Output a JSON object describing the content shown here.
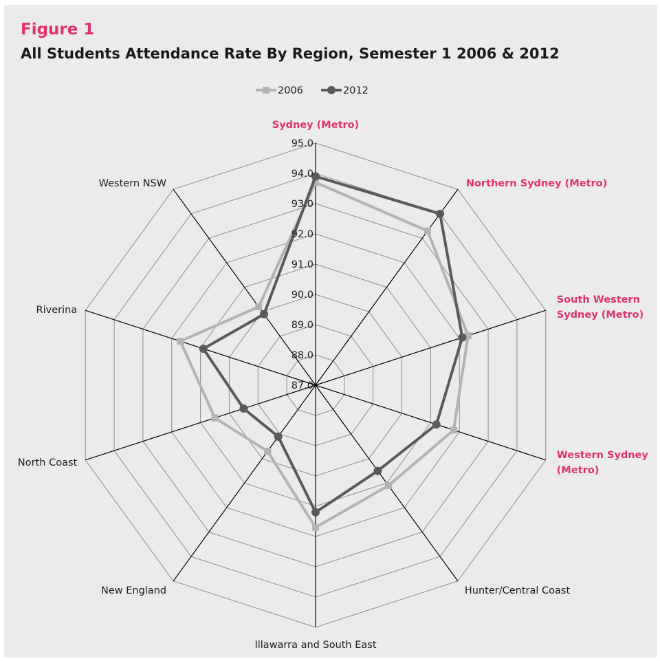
{
  "figure": {
    "label": "Figure 1",
    "title": "All Students Attendance Rate By Region, Semester 1 2006 & 2012"
  },
  "colors": {
    "background_panel": "#ebebeb",
    "highlight": "#e0336b",
    "series_2006": "#b3b3b3",
    "series_2012": "#5a5a5a",
    "grid": "#8c8c8c",
    "spoke": "#000000"
  },
  "chart_data": {
    "type": "radar",
    "title": "All Students Attendance Rate By Region, Semester 1 2006 & 2012",
    "categories": [
      "Sydney (Metro)",
      "Northern Sydney (Metro)",
      "South Western Sydney (Metro)",
      "Western Sydney (Metro)",
      "Hunter/Central Coast",
      "Illawarra and South East",
      "New England",
      "North Coast",
      "Riverina",
      "Western NSW"
    ],
    "category_lines": [
      [
        "Sydney (Metro)"
      ],
      [
        "Northern Sydney (Metro)"
      ],
      [
        "South Western",
        "Sydney (Metro)"
      ],
      [
        "Western Sydney",
        "(Metro)"
      ],
      [
        "Hunter/Central Coast"
      ],
      [
        "Illawarra and South East"
      ],
      [
        "New England"
      ],
      [
        "North Coast"
      ],
      [
        "Riverina"
      ],
      [
        "Western NSW"
      ]
    ],
    "highlighted_categories": [
      "Sydney (Metro)",
      "Northern Sydney (Metro)",
      "South Western Sydney (Metro)",
      "Western Sydney (Metro)"
    ],
    "series": [
      {
        "name": "2006",
        "values": [
          93.7,
          93.3,
          92.3,
          91.8,
          91.1,
          91.7,
          89.7,
          90.5,
          91.7,
          90.2
        ]
      },
      {
        "name": "2012",
        "values": [
          93.9,
          94.0,
          92.1,
          91.2,
          90.5,
          91.2,
          89.1,
          89.5,
          90.9,
          89.9
        ]
      }
    ],
    "r_range": [
      87.0,
      95.0
    ],
    "ticks": [
      "87.0",
      "88.0",
      "89.0",
      "90.0",
      "91.0",
      "92.0",
      "93.0",
      "94.0",
      "95.0"
    ],
    "legend": [
      "2006",
      "2012"
    ],
    "legend_position": "top",
    "grid": true
  }
}
